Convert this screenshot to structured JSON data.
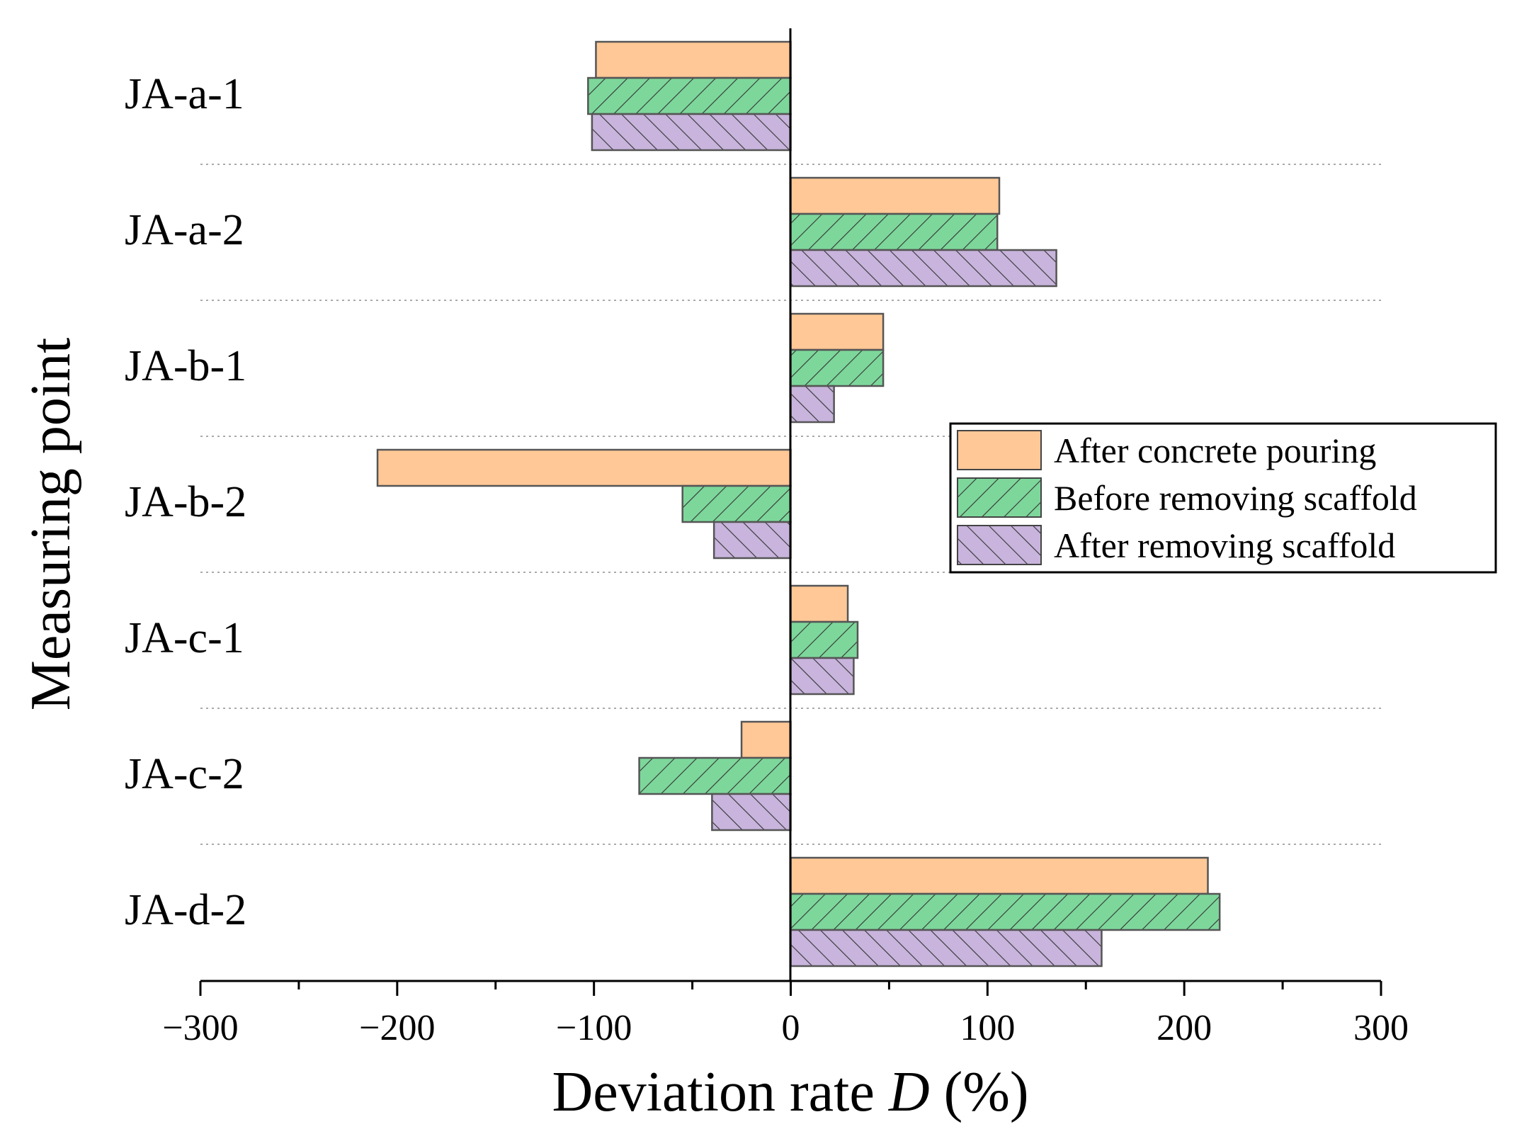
{
  "chart_data": {
    "type": "bar",
    "orientation": "horizontal",
    "categories": [
      "JA-a-1",
      "JA-a-2",
      "JA-b-1",
      "JA-b-2",
      "JA-c-1",
      "JA-c-2",
      "JA-d-2"
    ],
    "series": [
      {
        "name": "After concrete pouring",
        "color": "#FFC896",
        "pattern": "none",
        "values": [
          -99,
          106,
          47,
          -210,
          29,
          -25,
          212
        ]
      },
      {
        "name": "Before removing scaffold",
        "color": "#7DD79B",
        "pattern": "backslash",
        "values": [
          -103,
          105,
          47,
          -55,
          34,
          -77,
          218
        ]
      },
      {
        "name": "After removing scaffold",
        "color": "#C8B4DC",
        "pattern": "slash",
        "values": [
          -101,
          135,
          22,
          -39,
          32,
          -40,
          158
        ]
      }
    ],
    "xlabel_main": "Deviation rate ",
    "xlabel_italic": "D",
    "xlabel_suffix": " (%)",
    "ylabel": "Measuring point",
    "xlim": [
      -300,
      300
    ],
    "xticks": [
      -300,
      -200,
      -100,
      0,
      100,
      200,
      300
    ],
    "xtick_labels": [
      "−300",
      "−200",
      "−100",
      "0",
      "100",
      "200",
      "300"
    ],
    "legend_position": "right-middle",
    "grid": "dotted horizontal separators between categories"
  }
}
